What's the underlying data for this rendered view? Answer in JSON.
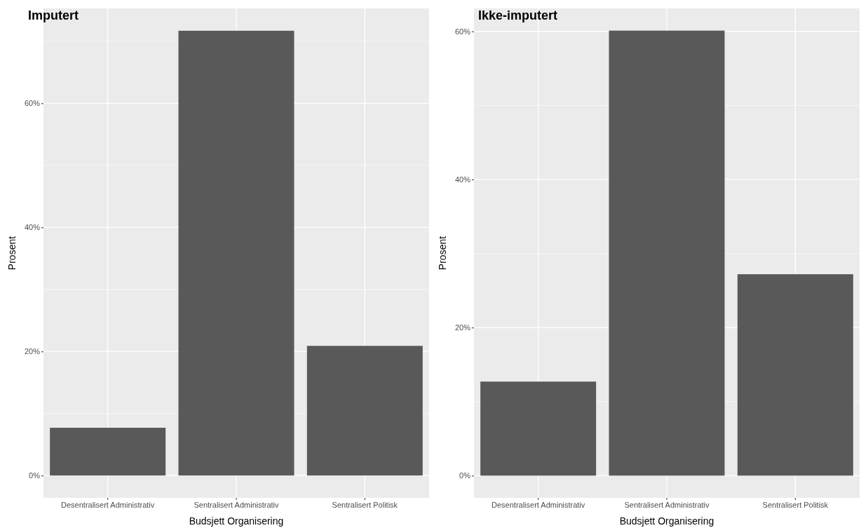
{
  "chart_data": [
    {
      "type": "bar",
      "title": "Imputert",
      "xlabel": "Budsjett Organisering",
      "ylabel": "Prosent",
      "categories": [
        "Desentralisert Administrativ",
        "Sentralisert Administrativ",
        "Sentralisert Politisk"
      ],
      "values": [
        7.7,
        71.7,
        20.9
      ],
      "color": "#595959",
      "ylim": [
        -3.6,
        75.3
      ],
      "yticks": [
        {
          "value": 0,
          "label": "0%"
        },
        {
          "value": 20,
          "label": "20%"
        },
        {
          "value": 40,
          "label": "40%"
        },
        {
          "value": 60,
          "label": "60%"
        }
      ],
      "grid": true
    },
    {
      "type": "bar",
      "title": "Ikke-imputert",
      "xlabel": "Budsjett Organisering",
      "ylabel": "Prosent",
      "categories": [
        "Desentralisert Administrativ",
        "Sentralisert Administrativ",
        "Sentralisert Politisk"
      ],
      "values": [
        12.7,
        60.1,
        27.2
      ],
      "color": "#595959",
      "ylim": [
        -3.0,
        63.1
      ],
      "yticks": [
        {
          "value": 0,
          "label": "0%"
        },
        {
          "value": 20,
          "label": "20%"
        },
        {
          "value": 40,
          "label": "40%"
        },
        {
          "value": 60,
          "label": "60%"
        }
      ],
      "grid": true
    }
  ]
}
